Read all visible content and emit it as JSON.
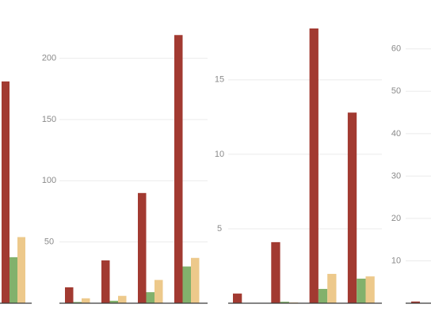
{
  "chart_data": [
    {
      "type": "bar",
      "categories": [
        null
      ],
      "ylim": [
        0,
        100
      ],
      "grid": false,
      "series": [
        {
          "color": "#a23a31",
          "values": [
            80.5
          ]
        },
        {
          "color": "#82b16c",
          "values": [
            16.7
          ]
        },
        {
          "color": "#edc98b",
          "values": [
            24
          ]
        }
      ]
    },
    {
      "type": "bar",
      "categories": [
        null,
        null,
        null,
        null
      ],
      "ylim": [
        0,
        225
      ],
      "yticks": [
        50,
        100,
        150,
        200
      ],
      "grid": true,
      "series": [
        {
          "color": "#a23a31",
          "values": [
            13,
            35,
            90,
            219
          ]
        },
        {
          "color": "#82b16c",
          "values": [
            1,
            2,
            9,
            30
          ]
        },
        {
          "color": "#edc98b",
          "values": [
            4,
            6,
            19,
            37
          ]
        }
      ]
    },
    {
      "type": "bar",
      "categories": [
        null,
        null,
        null,
        null
      ],
      "ylim": [
        0,
        18.5
      ],
      "yticks": [
        5,
        10,
        15
      ],
      "grid": true,
      "series": [
        {
          "color": "#a23a31",
          "values": [
            0.65,
            4.1,
            18.45,
            12.8
          ]
        },
        {
          "color": "#82b16c",
          "values": [
            0,
            0.1,
            0.96,
            1.65
          ]
        },
        {
          "color": "#edc98b",
          "values": [
            0,
            0.05,
            1.97,
            1.8
          ]
        }
      ]
    },
    {
      "type": "bar",
      "categories": [
        null
      ],
      "ylim": [
        0,
        65
      ],
      "yticks": [
        10,
        20,
        30,
        40,
        50,
        60
      ],
      "grid": true,
      "series": [
        {
          "color": "#a23a31",
          "values": [
            0.4
          ]
        }
      ]
    }
  ]
}
